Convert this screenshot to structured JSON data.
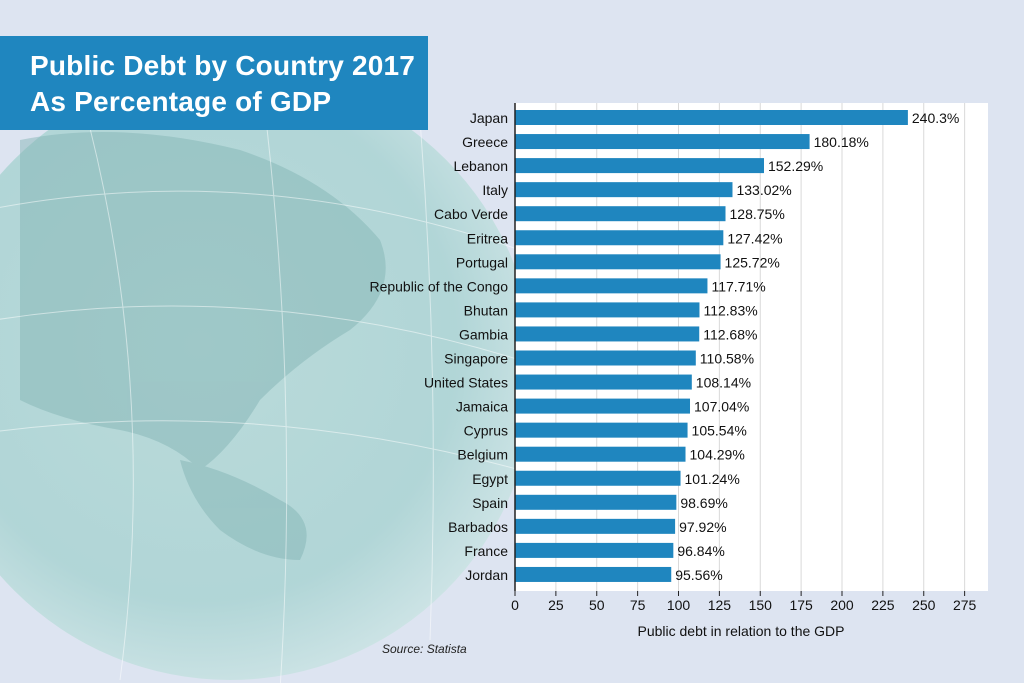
{
  "title": {
    "line1": "Public Debt by Country 2017",
    "line2": "As Percentage of GDP"
  },
  "source": "Source: Statista",
  "colors": {
    "bar": "#1f86bf",
    "title_bg": "#1f86bf",
    "background": "#dde4f1"
  },
  "chart_data": {
    "type": "bar",
    "orientation": "horizontal",
    "title": "Public Debt by Country 2017 As Percentage of GDP",
    "xlabel": "Public debt in relation to the GDP",
    "ylabel": "",
    "xlim": [
      0,
      285
    ],
    "xticks": [
      0,
      25,
      50,
      75,
      100,
      125,
      150,
      175,
      200,
      225,
      250,
      275
    ],
    "grid": "vertical",
    "categories": [
      "Japan",
      "Greece",
      "Lebanon",
      "Italy",
      "Cabo Verde",
      "Eritrea",
      "Portugal",
      "Republic of the Congo",
      "Bhutan",
      "Gambia",
      "Singapore",
      "United States",
      "Jamaica",
      "Cyprus",
      "Belgium",
      "Egypt",
      "Spain",
      "Barbados",
      "France",
      "Jordan"
    ],
    "values": [
      240.3,
      180.18,
      152.29,
      133.02,
      128.75,
      127.42,
      125.72,
      117.71,
      112.83,
      112.68,
      110.58,
      108.14,
      107.04,
      105.54,
      104.29,
      101.24,
      98.69,
      97.92,
      96.84,
      95.56
    ],
    "value_labels": [
      "240.3%",
      "180.18%",
      "152.29%",
      "133.02%",
      "128.75%",
      "127.42%",
      "125.72%",
      "117.71%",
      "112.83%",
      "112.68%",
      "110.58%",
      "108.14%",
      "107.04%",
      "105.54%",
      "104.29%",
      "101.24%",
      "98.69%",
      "97.92%",
      "96.84%",
      "95.56%"
    ]
  }
}
